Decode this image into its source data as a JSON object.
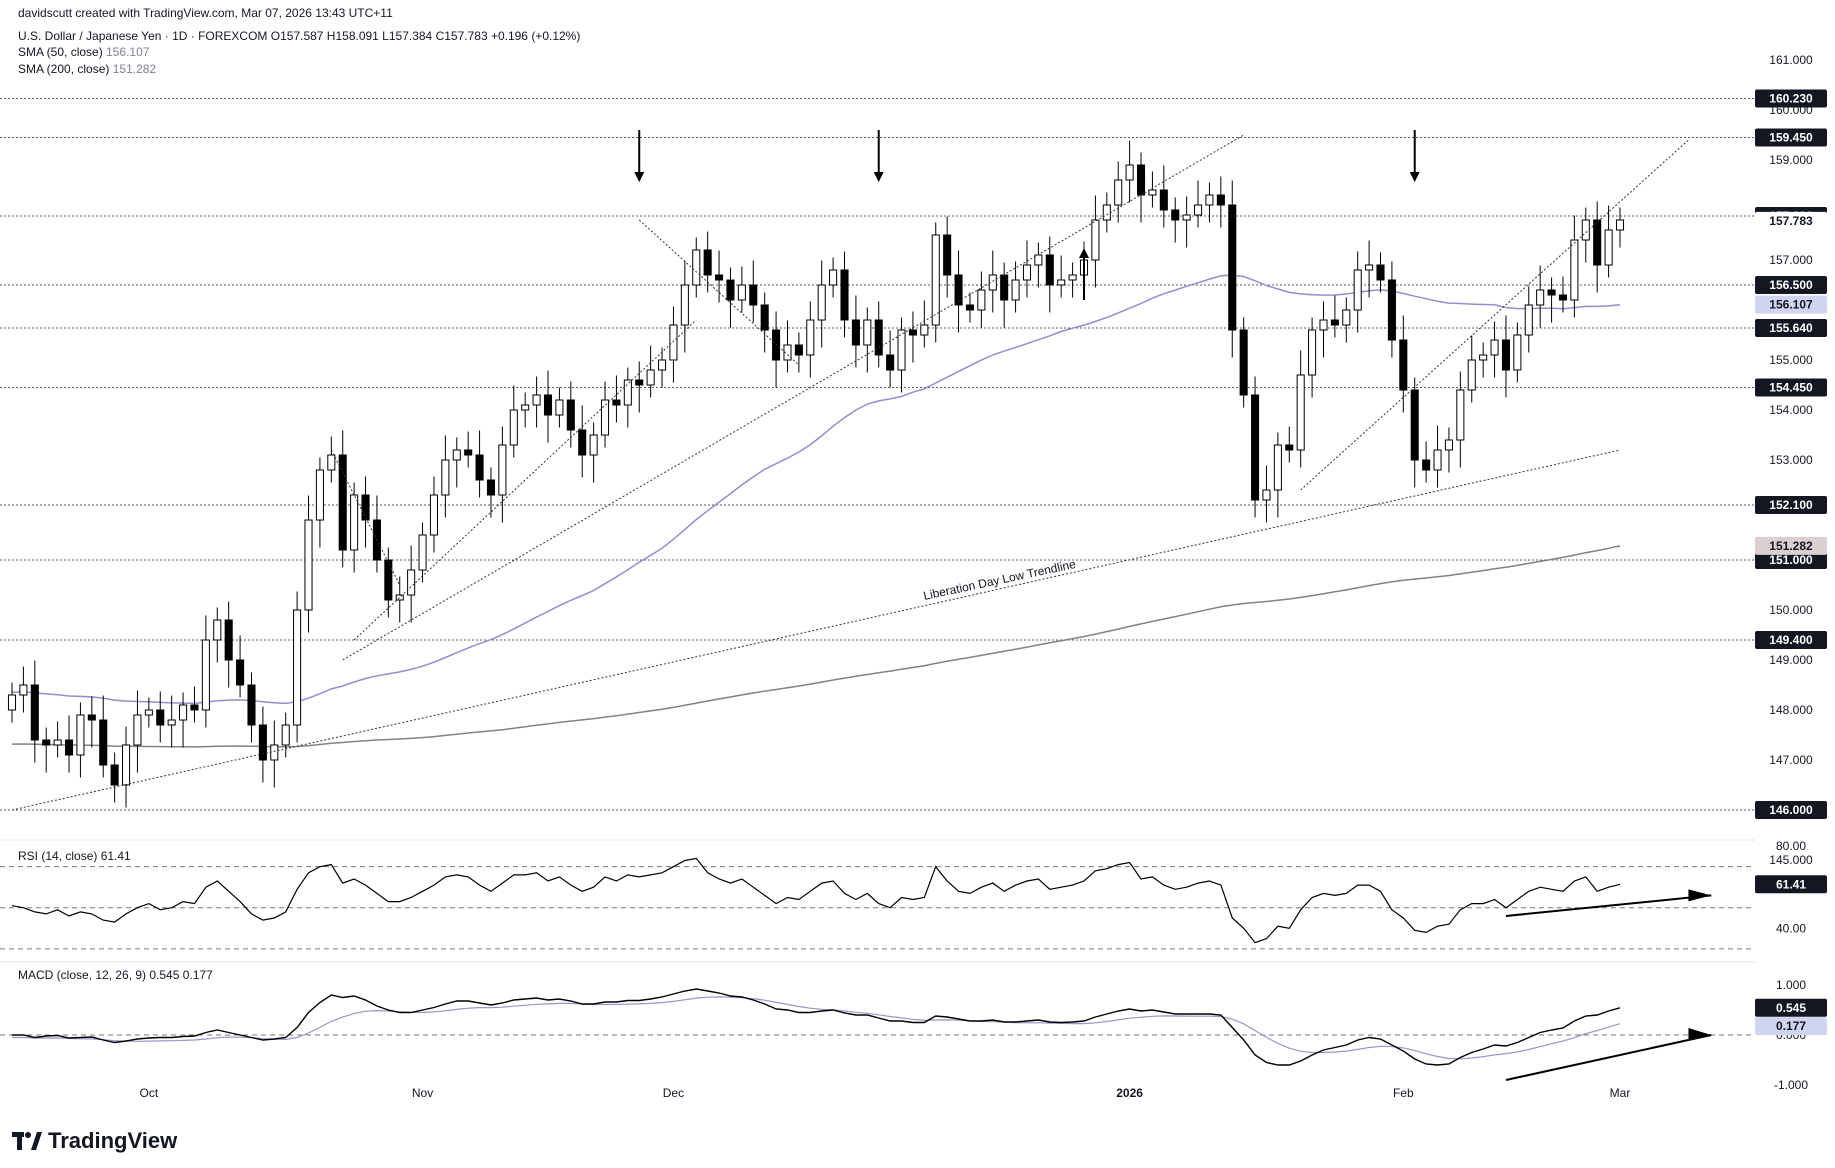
{
  "header": {
    "creator": "davidscutt created with TradingView.com, Mar 07, 2026 13:43 UTC+11",
    "symbol_line": "U.S. Dollar / Japanese Yen · 1D · FOREXCOM  O157.587  H158.091  L157.384  C157.783  +0.196 (+0.12%)",
    "sma50_label": "SMA (50, close)",
    "sma50_value": "156.107",
    "sma200_label": "SMA (200, close)",
    "sma200_value": "151.282"
  },
  "brand": "TradingView",
  "colors": {
    "candle_up_fill": "#ffffff",
    "candle_down_fill": "#000000",
    "candle_outline": "#000000",
    "sma50": "#8f8fcf",
    "sma200": "#8a7f7f",
    "level_badge_bg": "#131722",
    "level_badge_text": "#ffffff",
    "sma50_badge_bg": "#d1d4f0",
    "sma200_badge_bg": "#dccfcf",
    "grid_dash": "#5a5a5a"
  },
  "chart_data": [
    {
      "type": "candlestick",
      "title": "U.S. Dollar / Japanese Yen · 1D · FOREXCOM",
      "x_tick_labels": [
        "Oct",
        "Nov",
        "Dec",
        "2026",
        "Feb",
        "Mar"
      ],
      "y_tick_labels": [
        "161.000",
        "160.000",
        "159.000",
        "157.000",
        "155.000",
        "154.000",
        "153.000",
        "150.000",
        "149.000",
        "148.000",
        "147.000",
        "145.000"
      ],
      "ylim": [
        145.0,
        161.5
      ],
      "closes": [
        148.3,
        148.5,
        147.4,
        147.3,
        147.4,
        147.1,
        147.9,
        147.8,
        146.9,
        146.5,
        147.3,
        147.9,
        148.0,
        147.7,
        147.8,
        148.1,
        148.0,
        149.4,
        149.8,
        149.0,
        148.5,
        147.7,
        147.0,
        147.3,
        147.7,
        150.0,
        151.8,
        152.8,
        153.1,
        151.2,
        152.3,
        151.8,
        151.0,
        150.2,
        150.3,
        150.8,
        151.5,
        152.3,
        153.0,
        153.2,
        153.1,
        152.6,
        152.3,
        153.3,
        154.0,
        154.1,
        154.3,
        153.9,
        154.2,
        153.6,
        153.1,
        153.5,
        154.2,
        154.1,
        154.6,
        154.5,
        154.8,
        155.0,
        155.7,
        156.5,
        157.2,
        156.7,
        156.6,
        156.2,
        156.5,
        156.1,
        155.6,
        155.0,
        155.3,
        155.1,
        155.8,
        156.5,
        156.8,
        155.8,
        155.3,
        155.8,
        155.1,
        154.8,
        155.6,
        155.5,
        155.7,
        157.5,
        156.7,
        156.1,
        156.0,
        156.4,
        156.7,
        156.2,
        156.6,
        156.9,
        157.1,
        156.5,
        156.6,
        156.7,
        157.0,
        157.8,
        158.1,
        158.6,
        158.9,
        158.3,
        158.4,
        158.0,
        157.8,
        157.9,
        158.1,
        158.3,
        158.1,
        155.6,
        154.3,
        152.2,
        152.4,
        153.3,
        153.2,
        154.7,
        155.6,
        155.8,
        155.7,
        156.0,
        156.8,
        156.9,
        156.6,
        155.4,
        154.4,
        153.0,
        152.8,
        153.2,
        153.4,
        154.4,
        155.0,
        155.1,
        155.4,
        154.8,
        155.5,
        156.1,
        156.4,
        156.3,
        156.2,
        157.4,
        157.8,
        156.9,
        157.6,
        157.8
      ],
      "overlays": [
        {
          "name": "SMA (50, close)",
          "last": 156.107
        },
        {
          "name": "SMA (200, close)",
          "last": 151.282
        }
      ],
      "levels": [
        160.23,
        159.45,
        157.88,
        156.5,
        155.64,
        154.45,
        152.1,
        151.0,
        149.4,
        146.0
      ],
      "level_labels": [
        "160.230",
        "159.450",
        "157.880",
        "156.500",
        "155.640",
        "154.450",
        "152.100",
        "151.000",
        "149.400",
        "146.000"
      ],
      "value_badges": {
        "last_close": "157.783",
        "sma50": "156.107",
        "sma200": "151.282"
      },
      "annotations": [
        "Liberation Day Low Trendline"
      ],
      "arrows": [
        "down arrow over Nov-18 high",
        "down arrow over Dec-19 high",
        "up arrow mid-Jan",
        "down arrow over Mar high"
      ]
    },
    {
      "type": "line",
      "title": "RSI (14, close)",
      "value_label": "61.41",
      "y_tick_labels": [
        "80.00",
        "40.00"
      ],
      "ylim": [
        30,
        80
      ],
      "levels": [
        70,
        50,
        30
      ],
      "values": [
        51,
        50,
        48,
        47,
        49,
        46,
        48,
        47,
        44,
        43,
        47,
        50,
        52,
        49,
        50,
        53,
        52,
        60,
        63,
        58,
        53,
        47,
        44,
        45,
        48,
        59,
        67,
        70,
        71,
        62,
        64,
        61,
        57,
        53,
        53,
        55,
        58,
        61,
        65,
        66,
        65,
        61,
        58,
        62,
        66,
        66,
        67,
        63,
        65,
        61,
        58,
        60,
        65,
        63,
        66,
        65,
        66,
        67,
        70,
        73,
        74,
        67,
        64,
        62,
        64,
        60,
        56,
        52,
        55,
        54,
        58,
        62,
        63,
        57,
        54,
        57,
        52,
        50,
        55,
        54,
        55,
        70,
        63,
        58,
        57,
        60,
        62,
        58,
        61,
        63,
        64,
        59,
        60,
        61,
        63,
        68,
        69,
        71,
        72,
        64,
        65,
        61,
        59,
        60,
        62,
        63,
        61,
        45,
        40,
        33,
        35,
        41,
        40,
        49,
        55,
        57,
        56,
        57,
        61,
        61,
        58,
        49,
        45,
        39,
        38,
        41,
        42,
        49,
        52,
        52,
        54,
        50,
        54,
        58,
        60,
        59,
        58,
        63,
        65,
        58,
        60,
        61.41
      ],
      "trend_arrow": "rising"
    },
    {
      "type": "line",
      "title": "MACD (close, 12, 26, 9)",
      "series": [
        {
          "name": "MACD",
          "last": 0.545
        },
        {
          "name": "Signal",
          "last": 0.177
        }
      ],
      "value_labels": [
        "0.545",
        "0.177"
      ],
      "y_tick_labels": [
        "1.000",
        "0.000",
        "-1.000"
      ],
      "ylim": [
        -1.3,
        1.4
      ],
      "levels": [
        0
      ],
      "macd_values": [
        0.0,
        0.0,
        -0.05,
        -0.02,
        -0.01,
        -0.06,
        -0.05,
        -0.04,
        -0.1,
        -0.15,
        -0.12,
        -0.08,
        -0.06,
        -0.05,
        -0.05,
        -0.03,
        -0.02,
        0.05,
        0.1,
        0.05,
        0.0,
        -0.05,
        -0.1,
        -0.08,
        -0.05,
        0.15,
        0.45,
        0.65,
        0.8,
        0.75,
        0.78,
        0.7,
        0.58,
        0.5,
        0.45,
        0.45,
        0.5,
        0.55,
        0.62,
        0.68,
        0.68,
        0.64,
        0.6,
        0.64,
        0.7,
        0.72,
        0.74,
        0.7,
        0.72,
        0.68,
        0.62,
        0.62,
        0.66,
        0.66,
        0.69,
        0.69,
        0.72,
        0.76,
        0.82,
        0.88,
        0.92,
        0.88,
        0.84,
        0.78,
        0.76,
        0.7,
        0.62,
        0.52,
        0.5,
        0.45,
        0.45,
        0.48,
        0.5,
        0.44,
        0.4,
        0.4,
        0.34,
        0.28,
        0.28,
        0.25,
        0.25,
        0.38,
        0.36,
        0.32,
        0.28,
        0.28,
        0.3,
        0.26,
        0.26,
        0.28,
        0.3,
        0.26,
        0.25,
        0.26,
        0.28,
        0.36,
        0.42,
        0.48,
        0.52,
        0.48,
        0.5,
        0.46,
        0.42,
        0.42,
        0.42,
        0.42,
        0.4,
        0.15,
        -0.1,
        -0.4,
        -0.55,
        -0.6,
        -0.6,
        -0.52,
        -0.4,
        -0.3,
        -0.25,
        -0.2,
        -0.1,
        -0.05,
        -0.08,
        -0.2,
        -0.32,
        -0.48,
        -0.58,
        -0.6,
        -0.58,
        -0.45,
        -0.35,
        -0.28,
        -0.2,
        -0.22,
        -0.15,
        -0.05,
        0.05,
        0.1,
        0.14,
        0.28,
        0.38,
        0.4,
        0.48,
        0.545
      ],
      "trend_arrow": "rising"
    }
  ]
}
